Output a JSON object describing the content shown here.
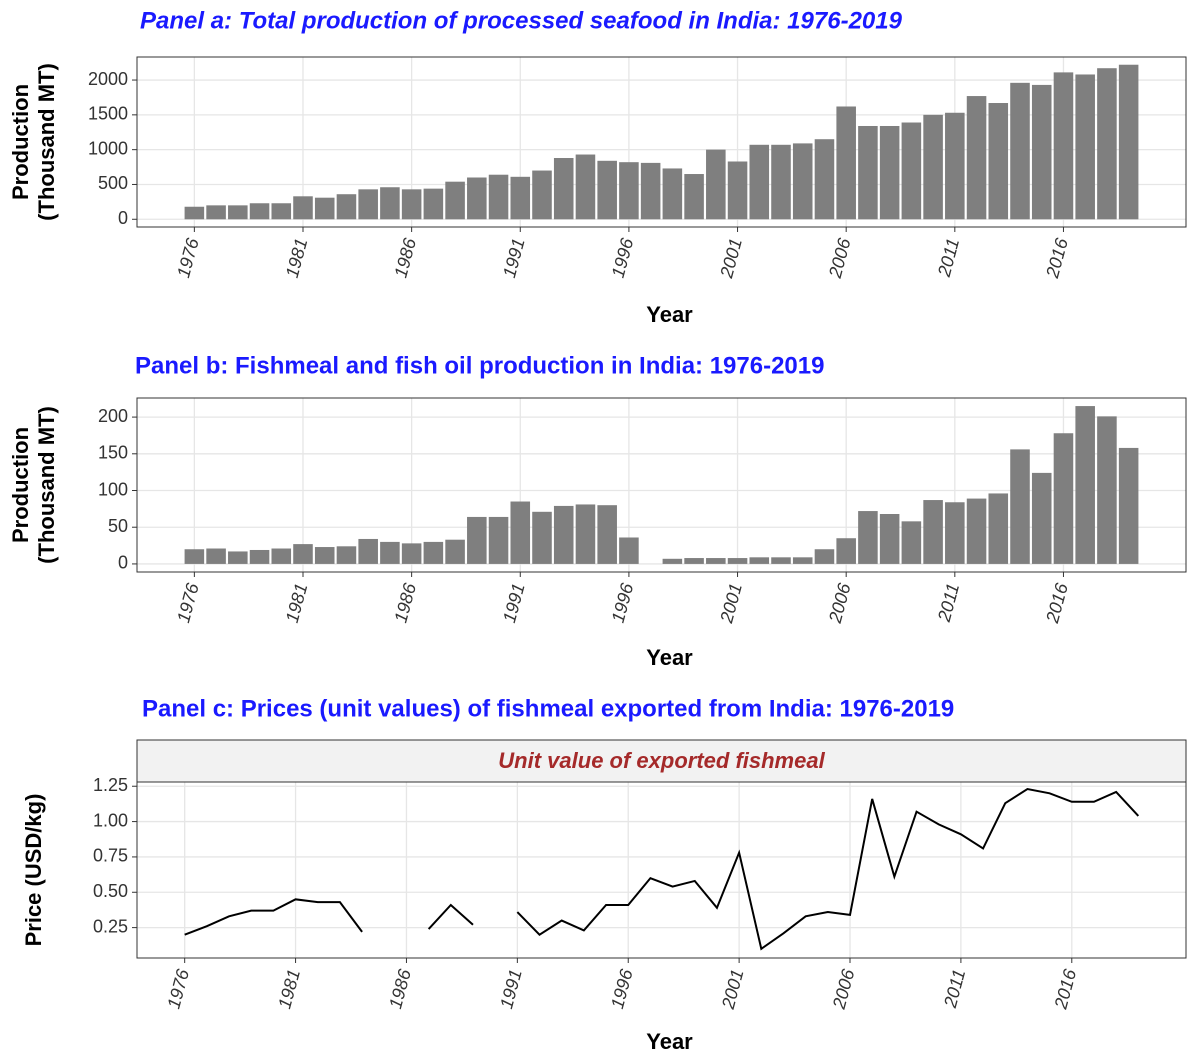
{
  "chart_data": [
    {
      "type": "bar",
      "title": "Panel a: Total production of processed seafood in India: 1976-2019",
      "xlabel": "Year",
      "ylabel": [
        "Production",
        "(Thousand MT)"
      ],
      "x": [
        1976,
        1977,
        1978,
        1979,
        1980,
        1981,
        1982,
        1983,
        1984,
        1985,
        1986,
        1987,
        1988,
        1989,
        1990,
        1991,
        1992,
        1993,
        1994,
        1995,
        1996,
        1997,
        1998,
        1999,
        2000,
        2001,
        2002,
        2003,
        2004,
        2005,
        2006,
        2007,
        2008,
        2009,
        2010,
        2011,
        2012,
        2013,
        2014,
        2015,
        2016,
        2017,
        2018,
        2019
      ],
      "values": [
        180,
        200,
        200,
        230,
        230,
        330,
        310,
        360,
        430,
        460,
        430,
        440,
        540,
        600,
        640,
        610,
        700,
        880,
        930,
        840,
        820,
        810,
        730,
        650,
        1000,
        830,
        1070,
        1070,
        1090,
        1150,
        1620,
        1340,
        1340,
        1390,
        1500,
        1530,
        1770,
        1670,
        1960,
        1930,
        2110,
        2080,
        2170,
        2220
      ],
      "color": "#7f7f7f",
      "xlim": [
        1973.36,
        2021.64
      ],
      "xticks": [
        1976,
        1981,
        1986,
        1991,
        1996,
        2001,
        2006,
        2011,
        2016
      ],
      "ylim": [
        -111,
        2331
      ],
      "yticks": [
        0,
        500,
        1000,
        1500,
        2000
      ],
      "grid": true
    },
    {
      "type": "bar",
      "title": "Panel b: Fishmeal and fish oil production in India: 1976-2019",
      "xlabel": "Year",
      "ylabel": [
        "Production",
        "(Thousand MT)"
      ],
      "x": [
        1976,
        1977,
        1978,
        1979,
        1980,
        1981,
        1982,
        1983,
        1984,
        1985,
        1986,
        1987,
        1988,
        1989,
        1990,
        1991,
        1992,
        1993,
        1994,
        1995,
        1996,
        1997,
        1998,
        1999,
        2000,
        2001,
        2002,
        2003,
        2004,
        2005,
        2006,
        2007,
        2008,
        2009,
        2010,
        2011,
        2012,
        2013,
        2014,
        2015,
        2016,
        2017,
        2018,
        2019
      ],
      "values": [
        20,
        21,
        17,
        19,
        21,
        27,
        23,
        24,
        34,
        30,
        28,
        30,
        33,
        64,
        64,
        85,
        71,
        79,
        81,
        80,
        36,
        null,
        7,
        8,
        8,
        8,
        9,
        9,
        9,
        20,
        35,
        72,
        68,
        58,
        87,
        84,
        89,
        96,
        156,
        124,
        178,
        215,
        201,
        158
      ],
      "color": "#7f7f7f",
      "xlim": [
        1973.36,
        2021.64
      ],
      "xticks": [
        1976,
        1981,
        1986,
        1991,
        1996,
        2001,
        2006,
        2011,
        2016
      ],
      "ylim": [
        -11,
        226
      ],
      "yticks": [
        0,
        50,
        100,
        150,
        200
      ],
      "grid": true
    },
    {
      "type": "line",
      "title": "Panel c: Prices (unit values) of fishmeal exported from India: 1976-2019",
      "strip": "Unit value of exported fishmeal",
      "xlabel": "Year",
      "ylabel": [
        "Price (USD/kg)"
      ],
      "x": [
        1976,
        1977,
        1978,
        1979,
        1980,
        1981,
        1982,
        1983,
        1984,
        1985,
        1986,
        1987,
        1988,
        1989,
        1990,
        1991,
        1992,
        1993,
        1994,
        1995,
        1996,
        1997,
        1998,
        1999,
        2000,
        2001,
        2002,
        2003,
        2004,
        2005,
        2006,
        2007,
        2008,
        2009,
        2010,
        2011,
        2012,
        2013,
        2014,
        2015,
        2016,
        2017,
        2018,
        2019
      ],
      "values": [
        0.2,
        0.26,
        0.33,
        0.37,
        0.37,
        0.45,
        0.43,
        0.43,
        0.22,
        null,
        null,
        0.24,
        0.41,
        0.27,
        null,
        0.36,
        0.2,
        0.3,
        0.23,
        0.41,
        0.41,
        0.6,
        0.54,
        0.58,
        0.39,
        0.78,
        0.1,
        0.21,
        0.33,
        0.36,
        0.34,
        1.16,
        0.61,
        1.07,
        0.98,
        0.91,
        0.81,
        1.13,
        1.23,
        1.2,
        1.14,
        1.14,
        1.21,
        1.04
      ],
      "color": "#000000",
      "xlim": [
        1973.85,
        2021.15
      ],
      "xticks": [
        1976,
        1981,
        1986,
        1991,
        1996,
        2001,
        2006,
        2011,
        2016
      ],
      "ylim": [
        0.035,
        1.28
      ],
      "yticks": [
        0.25,
        {
          "value": 0.5,
          "label": "0.50"
        },
        0.75,
        {
          "value": 1,
          "label": "1.00"
        },
        1.25
      ],
      "grid": true
    }
  ]
}
